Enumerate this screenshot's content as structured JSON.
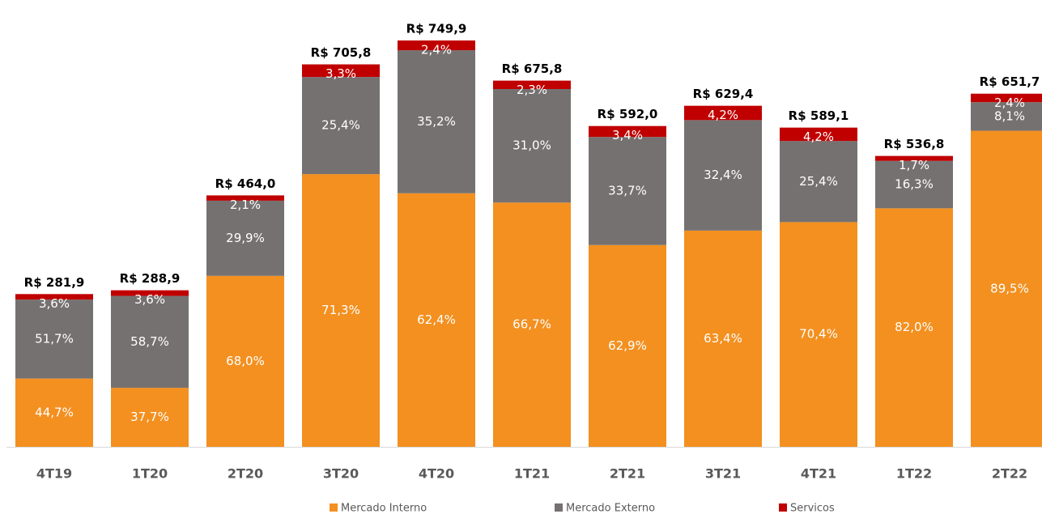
{
  "chart_data": {
    "type": "bar",
    "stacked": true,
    "categories": [
      "4T19",
      "1T20",
      "2T20",
      "3T20",
      "4T20",
      "1T21",
      "2T21",
      "3T21",
      "4T21",
      "1T22",
      "2T22"
    ],
    "series": [
      {
        "name": "Mercado Interno",
        "color": "#f39020",
        "values": [
          44.7,
          37.7,
          68.0,
          71.3,
          62.4,
          66.7,
          62.9,
          63.4,
          70.4,
          82.0,
          89.5
        ],
        "value_labels": [
          "44,7%",
          "37,7%",
          "68,0%",
          "71,3%",
          "62,4%",
          "66,7%",
          "62,9%",
          "63,4%",
          "70,4%",
          "82,0%",
          "89,5%"
        ]
      },
      {
        "name": "Mercado Externo",
        "color": "#767171",
        "values": [
          51.7,
          58.7,
          29.9,
          25.4,
          35.2,
          31.0,
          33.7,
          32.4,
          25.4,
          16.3,
          8.1
        ],
        "value_labels": [
          "51,7%",
          "58,7%",
          "29,9%",
          "25,4%",
          "35,2%",
          "31,0%",
          "33,7%",
          "32,4%",
          "25,4%",
          "16,3%",
          "8,1%"
        ]
      },
      {
        "name": "Servicos",
        "color": "#c00000",
        "values": [
          3.6,
          3.6,
          2.1,
          3.3,
          2.4,
          2.3,
          3.4,
          4.2,
          4.2,
          1.7,
          2.4
        ],
        "value_labels": [
          "3,6%",
          "3,6%",
          "2,1%",
          "3,3%",
          "2,4%",
          "2,3%",
          "3,4%",
          "4,2%",
          "4,2%",
          "1,7%",
          "2,4%"
        ]
      }
    ],
    "totals": {
      "values": [
        281.9,
        288.9,
        464.0,
        705.8,
        749.9,
        675.8,
        592.0,
        629.4,
        589.1,
        536.8,
        651.7
      ],
      "value_labels": [
        "R$ 281,9",
        "R$ 288,9",
        "R$ 464,0",
        "R$ 705,8",
        "R$ 749,9",
        "R$ 675,8",
        "R$ 592,0",
        "R$ 629,4",
        "R$ 589,1",
        "R$ 536,8",
        "R$ 651,7"
      ]
    }
  }
}
